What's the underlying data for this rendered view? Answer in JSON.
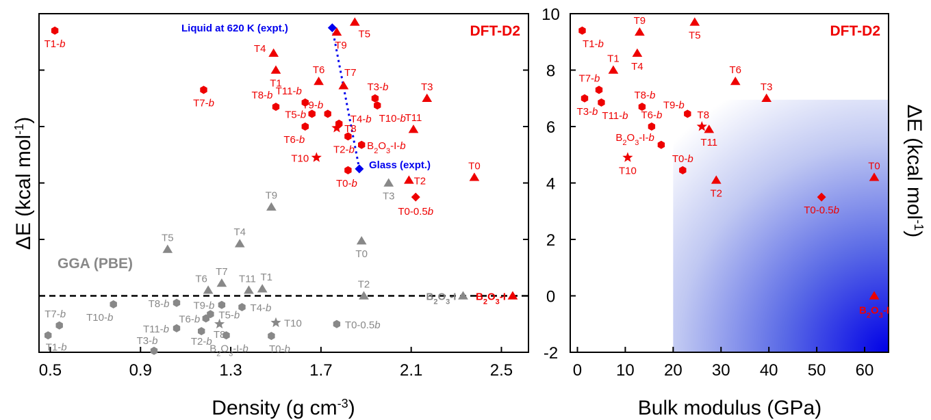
{
  "colors": {
    "dft": "#ee0000",
    "gga": "#888888",
    "expt": "#0000ee",
    "ref_line": "#000000"
  },
  "chart_data": [
    {
      "type": "scatter",
      "xlabel": "Density (g cm⁻³)",
      "ylabel": "ΔE (kcal mol⁻¹)",
      "xlim": [
        0.45,
        2.62
      ],
      "ylim": [
        -2.0,
        10.0
      ],
      "xticks": [
        "0.5",
        "0.9",
        "1.3",
        "1.7",
        "2.1",
        "2.5"
      ],
      "annotations": [
        {
          "text": "DFT-D2",
          "color": "dft"
        },
        {
          "text": "GGA (PBE)",
          "color": "gga"
        },
        {
          "text": "Liquid at 620 K (expt.)",
          "color": "expt"
        },
        {
          "text": "Glass (expt.)",
          "color": "expt"
        }
      ],
      "expt_line": [
        {
          "x": 1.75,
          "y": 9.5
        },
        {
          "x": 1.87,
          "y": 4.5
        }
      ],
      "series": [
        {
          "color": "dft",
          "points": [
            {
              "label": "T1-b",
              "x": 0.52,
              "y": 9.4,
              "marker": "hex"
            },
            {
              "label": "T7-b",
              "x": 1.18,
              "y": 7.3,
              "marker": "hex"
            },
            {
              "label": "T4",
              "x": 1.49,
              "y": 8.6,
              "marker": "tri"
            },
            {
              "label": "T1",
              "x": 1.5,
              "y": 8.0,
              "marker": "tri"
            },
            {
              "label": "T8-b",
              "x": 1.5,
              "y": 6.7,
              "marker": "hex"
            },
            {
              "label": "T11-b",
              "x": 1.63,
              "y": 6.85,
              "marker": "hex"
            },
            {
              "label": "T6",
              "x": 1.69,
              "y": 7.6,
              "marker": "tri"
            },
            {
              "label": "T9",
              "x": 1.77,
              "y": 9.35,
              "marker": "tri"
            },
            {
              "label": "T5",
              "x": 1.85,
              "y": 9.7,
              "marker": "tri"
            },
            {
              "label": "T7",
              "x": 1.8,
              "y": 7.45,
              "marker": "tri"
            },
            {
              "label": "T3-b",
              "x": 1.94,
              "y": 7.0,
              "marker": "hex"
            },
            {
              "label": "T10-b",
              "x": 1.95,
              "y": 6.75,
              "marker": "hex"
            },
            {
              "label": "T3",
              "x": 2.17,
              "y": 7.0,
              "marker": "tri"
            },
            {
              "label": "T9-b",
              "x": 1.73,
              "y": 6.45,
              "marker": "hex"
            },
            {
              "label": "T5-b",
              "x": 1.66,
              "y": 6.45,
              "marker": "hex"
            },
            {
              "label": "T6-b",
              "x": 1.63,
              "y": 6.0,
              "marker": "hex"
            },
            {
              "label": "T4-b",
              "x": 1.78,
              "y": 6.1,
              "marker": "hex"
            },
            {
              "label": "T8",
              "x": 1.77,
              "y": 5.95,
              "marker": "star"
            },
            {
              "label": "T2-b",
              "x": 1.82,
              "y": 5.65,
              "marker": "hex"
            },
            {
              "label": "B2O3-I-b",
              "x": 1.88,
              "y": 5.35,
              "marker": "hex"
            },
            {
              "label": "T11",
              "x": 2.11,
              "y": 5.9,
              "marker": "tri"
            },
            {
              "label": "T10",
              "x": 1.68,
              "y": 4.9,
              "marker": "star"
            },
            {
              "label": "T0-b",
              "x": 1.82,
              "y": 4.45,
              "marker": "hex"
            },
            {
              "label": "T2",
              "x": 2.09,
              "y": 4.1,
              "marker": "tri"
            },
            {
              "label": "T0",
              "x": 2.38,
              "y": 4.2,
              "marker": "tri"
            },
            {
              "label": "T0-0.5b",
              "x": 2.12,
              "y": 3.5,
              "marker": "diamond"
            },
            {
              "label": "B2O3-I",
              "x": 2.55,
              "y": 0.0,
              "marker": "tri"
            }
          ]
        },
        {
          "color": "gga",
          "points": [
            {
              "label": "T9",
              "x": 1.48,
              "y": 3.15,
              "marker": "tri"
            },
            {
              "label": "T3",
              "x": 2.0,
              "y": 4.0,
              "marker": "tri"
            },
            {
              "label": "T4",
              "x": 1.34,
              "y": 1.85,
              "marker": "tri"
            },
            {
              "label": "T5",
              "x": 1.02,
              "y": 1.65,
              "marker": "tri"
            },
            {
              "label": "T0",
              "x": 1.88,
              "y": 1.95,
              "marker": "tri"
            },
            {
              "label": "T6",
              "x": 1.2,
              "y": 0.2,
              "marker": "tri"
            },
            {
              "label": "T7",
              "x": 1.26,
              "y": 0.45,
              "marker": "tri"
            },
            {
              "label": "T11",
              "x": 1.38,
              "y": 0.2,
              "marker": "tri"
            },
            {
              "label": "T1",
              "x": 1.44,
              "y": 0.25,
              "marker": "tri"
            },
            {
              "label": "T2",
              "x": 1.89,
              "y": 0.0,
              "marker": "tri"
            },
            {
              "label": "B2O3-I",
              "x": 2.33,
              "y": 0.0,
              "marker": "tri"
            },
            {
              "label": "T10-b",
              "x": 0.78,
              "y": -0.3,
              "marker": "hex"
            },
            {
              "label": "T8-b",
              "x": 1.06,
              "y": -0.25,
              "marker": "hex"
            },
            {
              "label": "T9-b",
              "x": 1.26,
              "y": -0.32,
              "marker": "hex"
            },
            {
              "label": "T5-b",
              "x": 1.21,
              "y": -0.65,
              "marker": "hex"
            },
            {
              "label": "T6-b",
              "x": 1.19,
              "y": -0.8,
              "marker": "hex"
            },
            {
              "label": "T4-b",
              "x": 1.35,
              "y": -0.4,
              "marker": "hex"
            },
            {
              "label": "T8",
              "x": 1.25,
              "y": -1.0,
              "marker": "star"
            },
            {
              "label": "T10",
              "x": 1.5,
              "y": -0.95,
              "marker": "star"
            },
            {
              "label": "T0-0.5b",
              "x": 1.77,
              "y": -1.0,
              "marker": "hex"
            },
            {
              "label": "T7-b",
              "x": 0.54,
              "y": -1.05,
              "marker": "hex"
            },
            {
              "label": "T11-b",
              "x": 1.06,
              "y": -1.15,
              "marker": "hex"
            },
            {
              "label": "T1-b",
              "x": 0.49,
              "y": -1.4,
              "marker": "hex"
            },
            {
              "label": "T2-b",
              "x": 1.17,
              "y": -1.25,
              "marker": "hex"
            },
            {
              "label": "B2O3-I-b",
              "x": 1.28,
              "y": -1.4,
              "marker": "hex"
            },
            {
              "label": "T0-b",
              "x": 1.48,
              "y": -1.42,
              "marker": "hex"
            },
            {
              "label": "T3-b",
              "x": 0.96,
              "y": -1.95,
              "marker": "hex"
            }
          ]
        }
      ]
    },
    {
      "type": "scatter",
      "xlabel": "Bulk modulus (GPa)",
      "ylabel": "ΔE (kcal mol⁻¹)",
      "xlim": [
        -1.5,
        65.0
      ],
      "ylim": [
        -2.0,
        10.0
      ],
      "xticks": [
        "0",
        "10",
        "20",
        "30",
        "40",
        "50",
        "60"
      ],
      "yticks": [
        "-2",
        "0",
        "2",
        "4",
        "6",
        "8",
        "10"
      ],
      "annotations": [
        {
          "text": "DFT-D2",
          "color": "dft"
        }
      ],
      "shaded_region": {
        "x": [
          20,
          65
        ],
        "y": [
          -2.0,
          6.95
        ]
      },
      "series": [
        {
          "color": "dft",
          "points": [
            {
              "label": "T1-b",
              "x": 1.0,
              "y": 9.4,
              "marker": "hex"
            },
            {
              "label": "T9",
              "x": 13.0,
              "y": 9.35,
              "marker": "tri"
            },
            {
              "label": "T5",
              "x": 24.5,
              "y": 9.7,
              "marker": "tri"
            },
            {
              "label": "T4",
              "x": 12.5,
              "y": 8.6,
              "marker": "tri"
            },
            {
              "label": "T1",
              "x": 7.5,
              "y": 8.0,
              "marker": "tri"
            },
            {
              "label": "T6",
              "x": 33.0,
              "y": 7.6,
              "marker": "tri"
            },
            {
              "label": "T7-b",
              "x": 4.5,
              "y": 7.3,
              "marker": "hex"
            },
            {
              "label": "T3-b",
              "x": 1.5,
              "y": 7.0,
              "marker": "hex"
            },
            {
              "label": "T11-b",
              "x": 5.0,
              "y": 6.85,
              "marker": "hex"
            },
            {
              "label": "T8-b",
              "x": 13.5,
              "y": 6.7,
              "marker": "hex"
            },
            {
              "label": "T3",
              "x": 39.5,
              "y": 7.0,
              "marker": "tri"
            },
            {
              "label": "T9-b",
              "x": 23.0,
              "y": 6.45,
              "marker": "hex"
            },
            {
              "label": "T6-b",
              "x": 15.5,
              "y": 6.0,
              "marker": "hex"
            },
            {
              "label": "T8",
              "x": 26.0,
              "y": 6.0,
              "marker": "star"
            },
            {
              "label": "T11",
              "x": 27.5,
              "y": 5.9,
              "marker": "tri"
            },
            {
              "label": "B2O3-I-b",
              "x": 17.5,
              "y": 5.35,
              "marker": "hex"
            },
            {
              "label": "T10",
              "x": 10.5,
              "y": 4.9,
              "marker": "star"
            },
            {
              "label": "T0-b",
              "x": 22.0,
              "y": 4.45,
              "marker": "hex"
            },
            {
              "label": "T2",
              "x": 29.0,
              "y": 4.1,
              "marker": "tri"
            },
            {
              "label": "T0",
              "x": 62.0,
              "y": 4.2,
              "marker": "tri"
            },
            {
              "label": "T0-0.5b",
              "x": 51.0,
              "y": 3.5,
              "marker": "diamond"
            },
            {
              "label": "B2O3-I",
              "x": 62.0,
              "y": 0.0,
              "marker": "tri"
            }
          ]
        }
      ]
    }
  ]
}
